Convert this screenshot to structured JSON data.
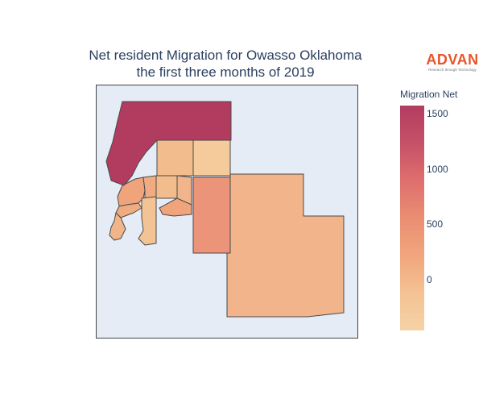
{
  "title": {
    "line1": "Net resident Migration for Owasso Oklahoma",
    "line2": "the first three months of 2019"
  },
  "logo": {
    "word": "ADVAN",
    "tagline": "Research through Technology",
    "color": "#e8542a"
  },
  "colorbar": {
    "title": "Migration Net",
    "ticks": [
      "1500",
      "1000",
      "500",
      "0"
    ],
    "range": [
      -400,
      1600
    ],
    "colors": [
      "#f5d2a6",
      "#f4c394",
      "#f1a67d",
      "#ea8e72",
      "#de6e6e",
      "#c65268",
      "#b23c60"
    ]
  },
  "map": {
    "background": "#e5ecf6",
    "region_colors": {
      "north": "#b23c60",
      "mid_left": "#f3bc8c",
      "mid_right": "#f5cb9c",
      "east_strip": "#eb9479",
      "large_southeast": "#f2b48a",
      "west_cluster": "#efa47c"
    }
  }
}
